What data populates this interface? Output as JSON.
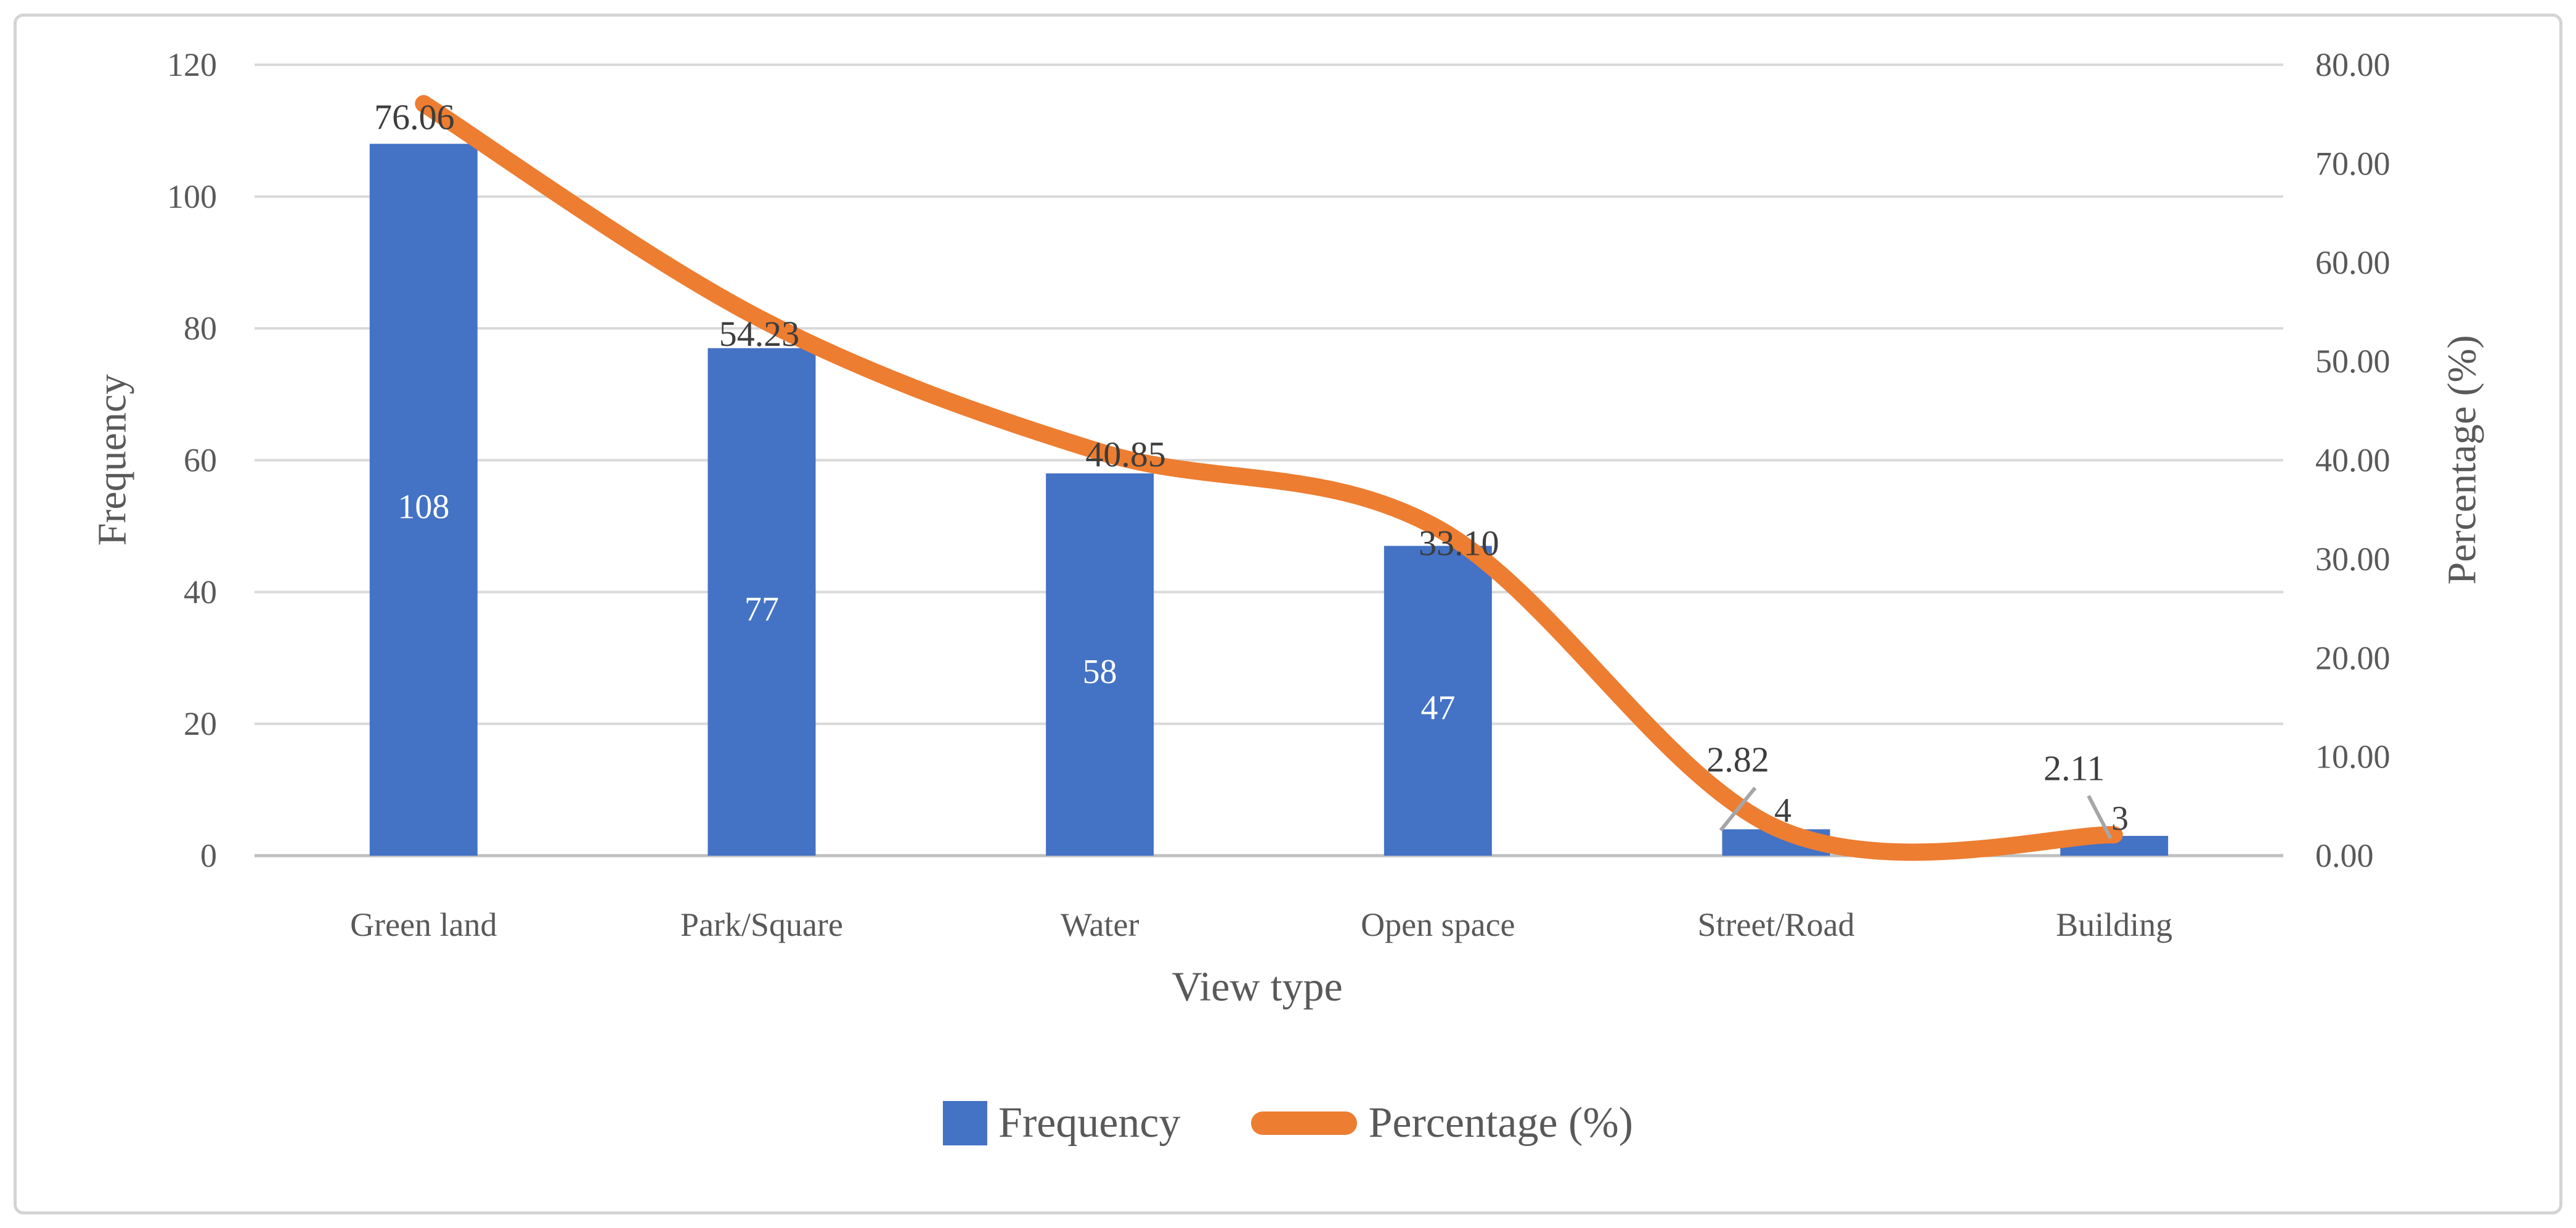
{
  "chart_data": {
    "type": "combo-bar-line",
    "title": "",
    "categories": [
      "Green land",
      "Park/Square",
      "Water",
      "Open space",
      "Street/Road",
      "Building"
    ],
    "series": [
      {
        "name": "Frequency",
        "type": "bar",
        "axis": "left",
        "color": "#4472C4",
        "values": [
          108,
          77,
          58,
          47,
          4,
          3
        ],
        "data_labels": [
          "108",
          "77",
          "58",
          "47",
          "4",
          "3"
        ],
        "data_label_inside_color": "#ffffff",
        "data_label_outside_color": "#404040"
      },
      {
        "name": "Percentage (%)",
        "type": "line",
        "axis": "right",
        "color": "#ED7D31",
        "smooth": true,
        "values": [
          76.06,
          54.23,
          40.85,
          33.1,
          2.82,
          2.11
        ],
        "data_labels": [
          "76.06",
          "54.23",
          "40.85",
          "33.10",
          "2.82",
          "2.11"
        ],
        "data_label_color": "#3d3d3d"
      }
    ],
    "x_axis": {
      "title": "View type"
    },
    "y_axis_left": {
      "title": "Frequency",
      "min": 0,
      "max": 120,
      "step": 20,
      "tick_labels": [
        "120",
        "100",
        "80",
        "60",
        "40",
        "20",
        "0"
      ]
    },
    "y_axis_right": {
      "title": "Percentage (%)",
      "min": 0,
      "max": 80,
      "step": 10,
      "tick_labels": [
        "80.00",
        "70.00",
        "60.00",
        "50.00",
        "40.00",
        "30.00",
        "20.00",
        "10.00",
        "0.00"
      ]
    },
    "gridlines": true,
    "legend": {
      "position": "bottom-center",
      "entries": [
        {
          "label": "Frequency",
          "marker": "square",
          "color": "#4472C4"
        },
        {
          "label": "Percentage (%)",
          "marker": "line",
          "color": "#ED7D31"
        }
      ]
    }
  },
  "colors": {
    "background": "#FFFFFF",
    "figure_border": "#D4D4D4",
    "axis_text": "#595959",
    "gridline": "#D9D9D9",
    "axis_line": "#BFBFBF",
    "leader_line": "#A6A6A6",
    "bar_fill": "#4472C4",
    "line_stroke": "#ED7D31"
  }
}
